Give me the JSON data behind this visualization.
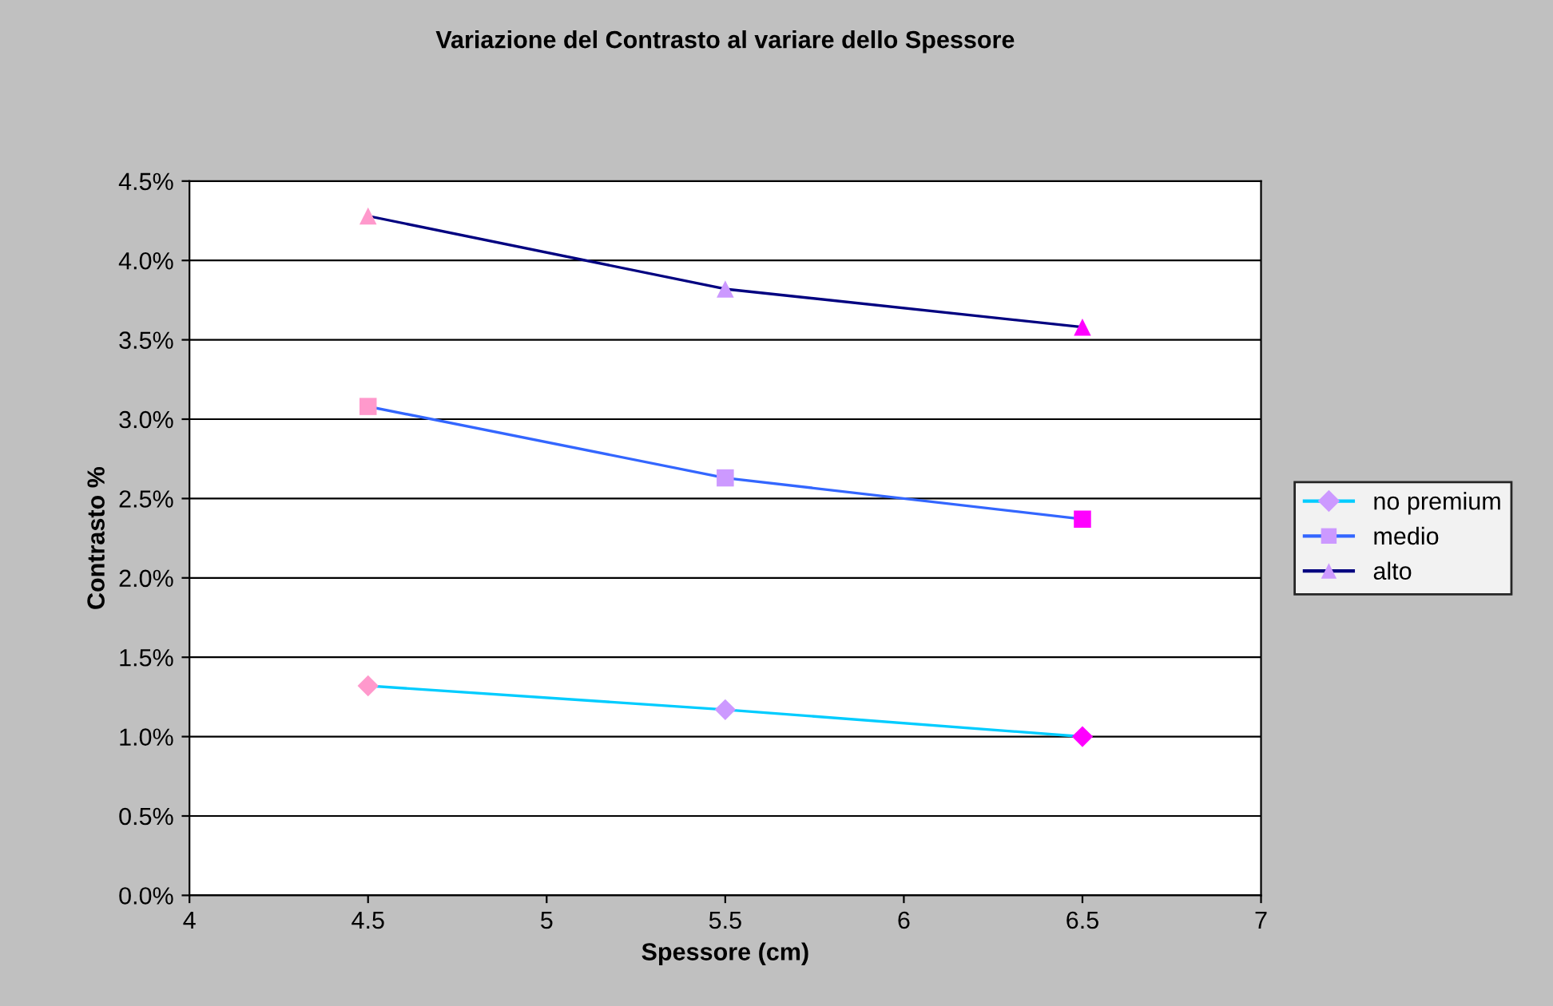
{
  "chart_data": {
    "type": "line",
    "title": "Variazione del Contrasto al variare dello Spessore",
    "xlabel": "Spessore (cm)",
    "ylabel": "Contrasto %",
    "x": [
      4.5,
      5.5,
      6.5
    ],
    "series": [
      {
        "name": "no premium",
        "color": "#00ccff",
        "marker": "diamond",
        "colors": [
          "#ff99cc",
          "#cc99ff",
          "#ff00ff"
        ],
        "values": [
          1.32,
          1.17,
          1.0
        ]
      },
      {
        "name": "medio",
        "color": "#3366ff",
        "marker": "square",
        "colors": [
          "#ff99cc",
          "#cc99ff",
          "#ff00ff"
        ],
        "values": [
          3.08,
          2.63,
          2.37
        ]
      },
      {
        "name": "alto",
        "color": "#000080",
        "marker": "triangle",
        "colors": [
          "#ff99cc",
          "#cc99ff",
          "#ff00ff"
        ],
        "values": [
          4.28,
          3.82,
          3.58
        ]
      }
    ],
    "xlim": [
      4,
      7
    ],
    "xticks": [
      4,
      4.5,
      5,
      5.5,
      6,
      6.5,
      7
    ],
    "ylim": [
      0,
      4.5
    ],
    "yticks": [
      {
        "value": 0,
        "label": "0.0%"
      },
      {
        "value": 0.5,
        "label": "0.5%"
      },
      {
        "value": 1,
        "label": "1.0%"
      },
      {
        "value": 1.5,
        "label": "1.5%"
      },
      {
        "value": 2,
        "label": "2.0%"
      },
      {
        "value": 2.5,
        "label": "2.5%"
      },
      {
        "value": 3,
        "label": "3.0%"
      },
      {
        "value": 3.5,
        "label": "3.5%"
      },
      {
        "value": 4,
        "label": "4.0%"
      },
      {
        "value": 4.5,
        "label": "4.5%"
      }
    ],
    "grid": "y",
    "legend": "right"
  }
}
